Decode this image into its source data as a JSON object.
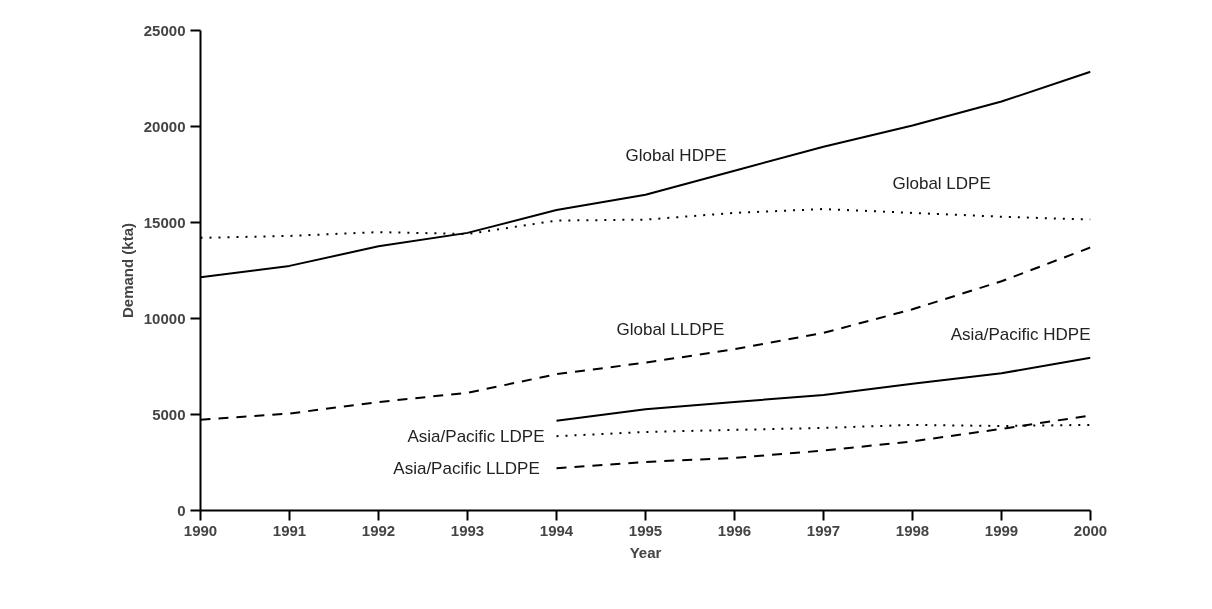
{
  "chart_data": {
    "type": "line",
    "xlabel": "Year",
    "ylabel": "Demand (kta)",
    "xlim": [
      1990,
      2000
    ],
    "ylim": [
      0,
      25000
    ],
    "xticks": [
      1990,
      1991,
      1992,
      1993,
      1994,
      1995,
      1996,
      1997,
      1998,
      1999,
      2000
    ],
    "yticks": [
      0,
      5000,
      10000,
      15000,
      20000,
      25000
    ],
    "grid": false,
    "x": [
      1990,
      1991,
      1992,
      1993,
      1994,
      1995,
      1996,
      1997,
      1998,
      1999,
      2000
    ],
    "series": [
      {
        "name": "Global HDPE",
        "color": "#000000",
        "line_style": "solid",
        "values": [
          12150,
          12740,
          13760,
          14460,
          15650,
          16450,
          17700,
          18950,
          20050,
          21300,
          22850
        ]
      },
      {
        "name": "Global LDPE",
        "color": "#000000",
        "line_style": "dotted",
        "values": [
          14200,
          14300,
          14500,
          14400,
          15100,
          15150,
          15500,
          15700,
          15500,
          15300,
          15150
        ]
      },
      {
        "name": "Global LLDPE",
        "color": "#000000",
        "line_style": "dashed",
        "values": [
          4730,
          5050,
          5650,
          6130,
          7100,
          7700,
          8400,
          9250,
          10480,
          11940,
          13700
        ]
      },
      {
        "name": "Asia/Pacific HDPE",
        "color": "#000000",
        "line_style": "solid",
        "x": [
          1994,
          1995,
          1996,
          1997,
          1998,
          1999,
          2000
        ],
        "values": [
          4680,
          5270,
          5650,
          6020,
          6600,
          7150,
          7950
        ]
      },
      {
        "name": "Asia/Pacific LDPE",
        "color": "#000000",
        "line_style": "dotted",
        "x": [
          1994,
          1995,
          1996,
          1997,
          1998,
          1999,
          2000
        ],
        "values": [
          3870,
          4090,
          4200,
          4300,
          4460,
          4400,
          4460
        ]
      },
      {
        "name": "Asia/Pacific  LLDPE",
        "color": "#000000",
        "line_style": "dashed",
        "x": [
          1994,
          1995,
          1996,
          1997,
          1998,
          1999,
          2000
        ],
        "values": [
          2200,
          2530,
          2740,
          3120,
          3600,
          4250,
          4950
        ]
      }
    ]
  }
}
